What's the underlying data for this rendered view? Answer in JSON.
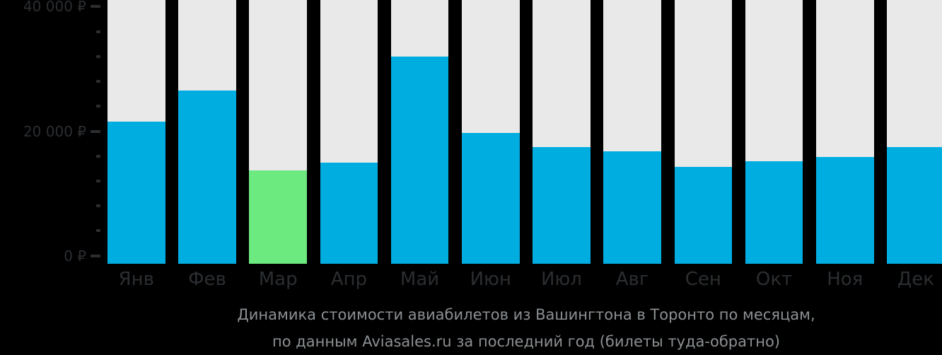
{
  "chart_data": {
    "type": "bar",
    "title": "Динамика стоимости авиабилетов из Вашингтона в Торонто по месяцам, по данным Aviasales.ru за последний год (билеты туда-обратно)",
    "categories": [
      "Янв",
      "Фев",
      "Мар",
      "Апр",
      "Май",
      "Июн",
      "Июл",
      "Авг",
      "Сен",
      "Окт",
      "Ноя",
      "Дек"
    ],
    "values": [
      21500,
      26500,
      13700,
      15000,
      32000,
      19700,
      17400,
      16800,
      14300,
      15200,
      15900,
      17500
    ],
    "currency": "₽",
    "highlighted_index": 2,
    "highlighted_month": "Мар",
    "ylim": [
      0,
      40000
    ],
    "yticks": [
      {
        "value": 0,
        "label": "0 ₽"
      },
      {
        "value": 20000,
        "label": "20 000 ₽"
      },
      {
        "value": 40000,
        "label": "40 000 ₽"
      }
    ],
    "ytick_minor_step": 4000,
    "legend": "none",
    "grid": "off",
    "colors": {
      "bar": "#00ade1",
      "highlight": "#6ce97f",
      "track": "#e9e9e9",
      "background": "#000000",
      "axis_text": "#2b2e31",
      "tick_mark": "#2b2e31",
      "caption_text": "#8c9093"
    }
  },
  "caption": {
    "line1": "Динамика стоимости авиабилетов из Вашингтона в Торонто по месяцам,",
    "line2": "по данным Aviasales.ru за последний год (билеты туда-обратно)"
  }
}
